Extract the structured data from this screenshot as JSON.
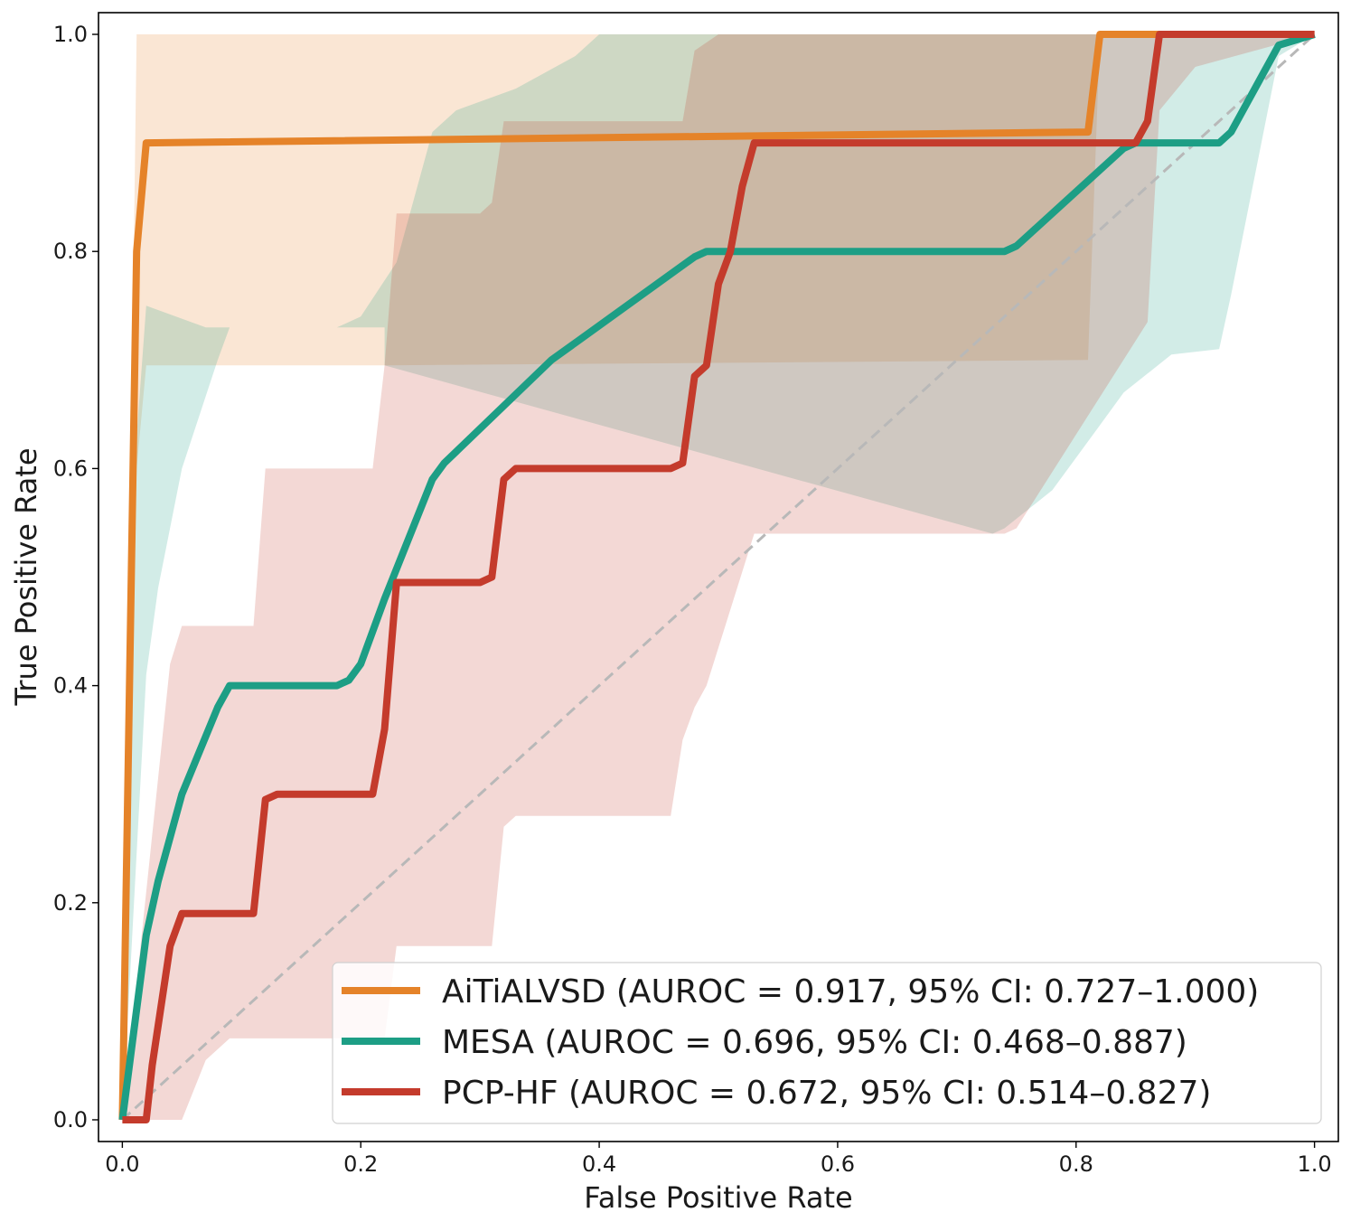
{
  "chart_data": {
    "type": "line",
    "title": "",
    "xlabel": "False Positive Rate",
    "ylabel": "True Positive Rate",
    "xlim": [
      -0.02,
      1.02
    ],
    "ylim": [
      -0.02,
      1.02
    ],
    "xticks": [
      0.0,
      0.2,
      0.4,
      0.6,
      0.8,
      1.0
    ],
    "yticks": [
      0.0,
      0.2,
      0.4,
      0.6,
      0.8,
      1.0
    ],
    "xtick_labels": [
      "0.0",
      "0.2",
      "0.4",
      "0.6",
      "0.8",
      "1.0"
    ],
    "ytick_labels": [
      "0.0",
      "0.2",
      "0.4",
      "0.6",
      "0.8",
      "1.0"
    ],
    "legend_position": "lower-right",
    "reference_line": {
      "name": "chance",
      "x": [
        0,
        1
      ],
      "y": [
        0,
        1
      ],
      "color": "#b8b8b8",
      "style": "dashed"
    },
    "series": [
      {
        "name": "AiTiALVSD",
        "label": "AiTiALVSD (AUROC = 0.917, 95% CI: 0.727–1.000)",
        "color": "#e58329",
        "x": [
          0,
          0.012,
          0.02,
          0.81,
          0.82,
          1.0
        ],
        "y": [
          0,
          0.8,
          0.9,
          0.91,
          1.0,
          1.0
        ],
        "ci_upper": [
          [
            0,
            0
          ],
          [
            0.012,
            1.0
          ],
          [
            1.0,
            1.0
          ]
        ],
        "ci_lower": [
          [
            0,
            0
          ],
          [
            0.012,
            0.6
          ],
          [
            0.02,
            0.695
          ],
          [
            0.22,
            0.695
          ],
          [
            0.81,
            0.7
          ],
          [
            0.82,
            1.0
          ],
          [
            1.0,
            1.0
          ]
        ]
      },
      {
        "name": "MESA",
        "label": "MESA (AUROC = 0.696, 95% CI: 0.468–0.887)",
        "color": "#1d9e85",
        "x": [
          0,
          0.02,
          0.03,
          0.05,
          0.08,
          0.09,
          0.18,
          0.19,
          0.2,
          0.22,
          0.26,
          0.27,
          0.36,
          0.48,
          0.49,
          0.74,
          0.75,
          0.84,
          0.85,
          0.92,
          0.93,
          0.97,
          1.0
        ],
        "y": [
          0,
          0.17,
          0.22,
          0.3,
          0.38,
          0.4,
          0.4,
          0.405,
          0.42,
          0.48,
          0.59,
          0.605,
          0.7,
          0.795,
          0.8,
          0.8,
          0.805,
          0.895,
          0.9,
          0.9,
          0.91,
          0.99,
          1.0
        ],
        "ci_upper": [
          [
            0,
            0
          ],
          [
            0.01,
            0.6
          ],
          [
            0.02,
            0.75
          ],
          [
            0.07,
            0.73
          ],
          [
            0.18,
            0.73
          ],
          [
            0.2,
            0.74
          ],
          [
            0.23,
            0.79
          ],
          [
            0.26,
            0.91
          ],
          [
            0.28,
            0.93
          ],
          [
            0.33,
            0.95
          ],
          [
            0.38,
            0.98
          ],
          [
            0.4,
            1.0
          ],
          [
            1.0,
            1.0
          ]
        ],
        "ci_lower": [
          [
            0,
            0
          ],
          [
            0.02,
            0.41
          ],
          [
            0.03,
            0.49
          ],
          [
            0.05,
            0.6
          ],
          [
            0.08,
            0.7
          ],
          [
            0.09,
            0.73
          ],
          [
            0.22,
            0.73
          ],
          [
            0.22,
            0.695
          ],
          [
            0.73,
            0.54
          ],
          [
            0.74,
            0.545
          ],
          [
            0.78,
            0.58
          ],
          [
            0.82,
            0.64
          ],
          [
            0.84,
            0.67
          ],
          [
            0.88,
            0.705
          ],
          [
            0.92,
            0.71
          ],
          [
            0.93,
            0.76
          ],
          [
            0.97,
            0.98
          ],
          [
            1.0,
            1.0
          ]
        ]
      },
      {
        "name": "PCP-HF",
        "label": "PCP-HF (AUROC = 0.672, 95% CI: 0.514–0.827)",
        "color": "#c43b2c",
        "x": [
          0,
          0.02,
          0.025,
          0.04,
          0.05,
          0.11,
          0.12,
          0.13,
          0.21,
          0.22,
          0.23,
          0.3,
          0.31,
          0.32,
          0.33,
          0.46,
          0.47,
          0.48,
          0.49,
          0.5,
          0.51,
          0.52,
          0.53,
          0.85,
          0.86,
          0.87,
          1.0
        ],
        "y": [
          0,
          0,
          0.05,
          0.16,
          0.19,
          0.19,
          0.295,
          0.3,
          0.3,
          0.36,
          0.495,
          0.495,
          0.5,
          0.59,
          0.6,
          0.6,
          0.605,
          0.685,
          0.695,
          0.77,
          0.8,
          0.86,
          0.9,
          0.9,
          0.92,
          1.0,
          1.0
        ],
        "ci_upper": [
          [
            0,
            0
          ],
          [
            0.04,
            0.42
          ],
          [
            0.05,
            0.455
          ],
          [
            0.11,
            0.455
          ],
          [
            0.12,
            0.6
          ],
          [
            0.21,
            0.6
          ],
          [
            0.22,
            0.695
          ],
          [
            0.23,
            0.835
          ],
          [
            0.3,
            0.835
          ],
          [
            0.31,
            0.845
          ],
          [
            0.32,
            0.92
          ],
          [
            0.47,
            0.92
          ],
          [
            0.48,
            0.985
          ],
          [
            0.5,
            1.0
          ],
          [
            1.0,
            1.0
          ]
        ],
        "ci_lower": [
          [
            0,
            0
          ],
          [
            0.05,
            0
          ],
          [
            0.07,
            0.055
          ],
          [
            0.09,
            0.075
          ],
          [
            0.22,
            0.075
          ],
          [
            0.23,
            0.16
          ],
          [
            0.31,
            0.16
          ],
          [
            0.32,
            0.27
          ],
          [
            0.33,
            0.28
          ],
          [
            0.46,
            0.28
          ],
          [
            0.47,
            0.35
          ],
          [
            0.48,
            0.38
          ],
          [
            0.49,
            0.4
          ],
          [
            0.53,
            0.54
          ],
          [
            0.74,
            0.54
          ],
          [
            0.75,
            0.545
          ],
          [
            0.86,
            0.735
          ],
          [
            0.87,
            0.93
          ],
          [
            0.9,
            0.97
          ],
          [
            1.0,
            1.0
          ]
        ]
      }
    ]
  }
}
